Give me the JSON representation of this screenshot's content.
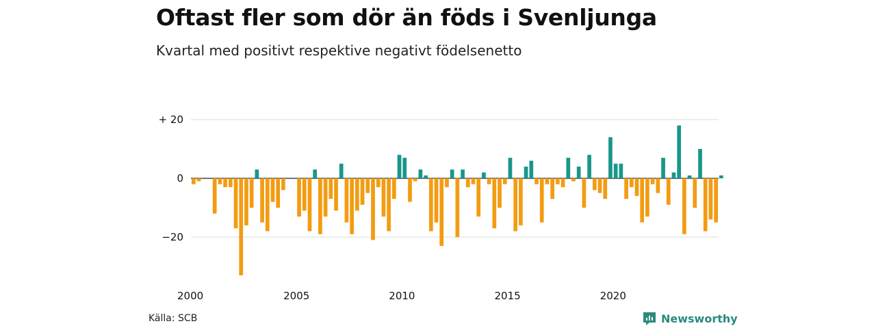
{
  "title": "Oftast fler som dör än föds i Svenljunga",
  "subtitle": "Kvartal med positivt respektive negativt födelsenetto",
  "source": "Källa: SCB",
  "brand": "Newsworthy",
  "colors": {
    "positive": "#1a968a",
    "negative": "#f39c12",
    "grid": "#dddddd",
    "zero": "#222222"
  },
  "chart_data": {
    "type": "bar",
    "x_start": 2000,
    "x_end": 2025,
    "quarters_per_year": 4,
    "ylim": [
      -35,
      22
    ],
    "yticks": [
      20,
      0,
      -20
    ],
    "ytick_labels": [
      "+ 20",
      "0",
      "−20"
    ],
    "xticks": [
      2000,
      2005,
      2010,
      2015,
      2020
    ],
    "xtick_labels": [
      "2000",
      "2005",
      "2010",
      "2015",
      "2020"
    ],
    "values": [
      -2,
      -1,
      0,
      0,
      -12,
      -2,
      -3,
      -3,
      -17,
      -33,
      -16,
      -10,
      3,
      -15,
      -18,
      -8,
      -10,
      -4,
      0,
      0,
      -13,
      -11,
      -18,
      3,
      -19,
      -13,
      -7,
      -11,
      5,
      -15,
      -19,
      -11,
      -9,
      -5,
      -21,
      -3,
      -13,
      -18,
      -7,
      8,
      7,
      -8,
      -1,
      3,
      1,
      -18,
      -15,
      -23,
      -3,
      3,
      -20,
      3,
      -3,
      -2,
      -13,
      2,
      -2,
      -17,
      -10,
      -2,
      7,
      -18,
      -16,
      4,
      6,
      -2,
      -15,
      -2,
      -7,
      -2,
      -3,
      7,
      -1,
      4,
      -10,
      8,
      -4,
      -5,
      -7,
      14,
      5,
      5,
      -7,
      -3,
      -6,
      -15,
      -13,
      -2,
      -5,
      7,
      -9,
      2,
      18,
      -19,
      1,
      -10,
      10,
      -18,
      -14,
      -15,
      1
    ]
  }
}
